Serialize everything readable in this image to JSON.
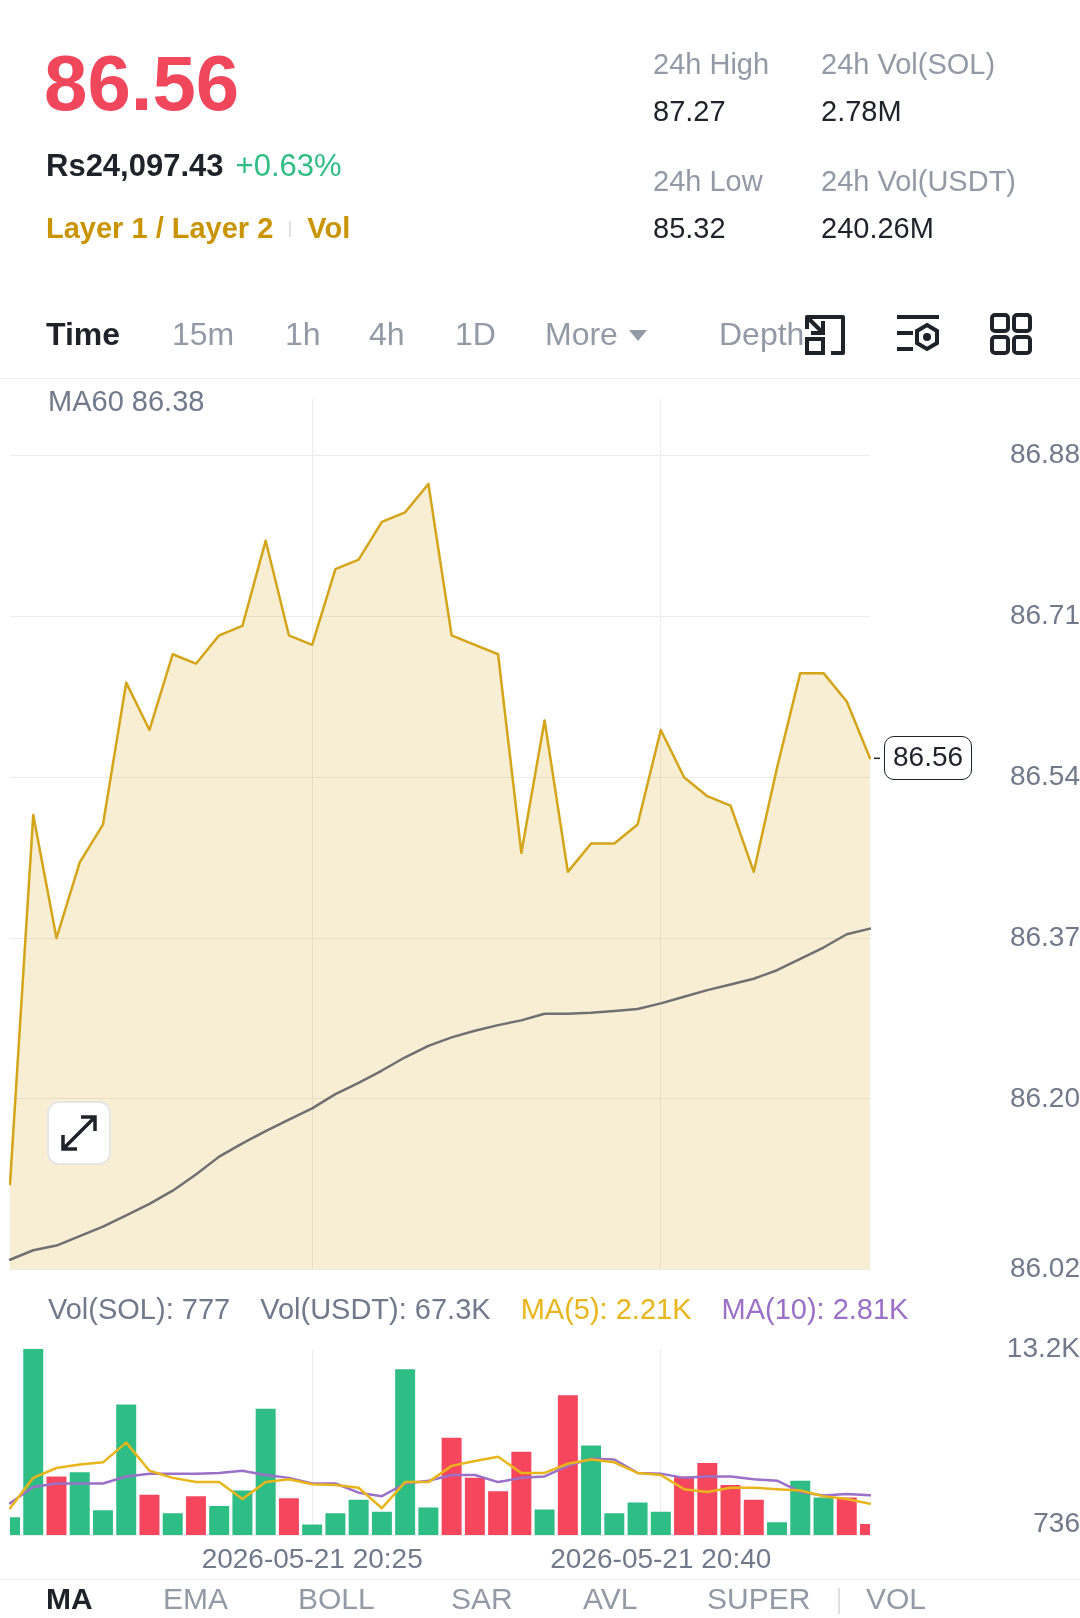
{
  "chart_data": [
    {
      "type": "other",
      "title": "86.56",
      "annotations": [
        "Rs24,097.43",
        "+0.63%",
        "Layer 1 / Layer 2",
        "Vol",
        "24h High",
        "87.27",
        "24h Vol(SOL)",
        "2.78M",
        "24h Low",
        "85.32",
        "24h Vol(USDT)",
        "240.26M",
        "Time",
        "15m",
        "1h",
        "4h",
        "1D",
        "More",
        "Depth"
      ]
    },
    {
      "type": "area",
      "categories": [
        null,
        null,
        null,
        null,
        null,
        null,
        null,
        null,
        null,
        null,
        null,
        null,
        null,
        "2026-05-21 20:25",
        null,
        null,
        null,
        null,
        null,
        null,
        null,
        null,
        null,
        null,
        null,
        null,
        null,
        null,
        "2026-05-21 20:40",
        null,
        null,
        null,
        null,
        null,
        null,
        null,
        null,
        null
      ],
      "series": [
        {
          "color": "#d4a419",
          "values": [
            86.11,
            86.5,
            86.37,
            86.45,
            86.49,
            86.64,
            86.59,
            86.67,
            86.66,
            86.69,
            86.7,
            86.79,
            86.69,
            86.68,
            86.76,
            86.77,
            86.81,
            86.82,
            86.85,
            86.69,
            86.68,
            86.67,
            86.46,
            86.6,
            86.44,
            86.47,
            86.47,
            86.49,
            86.59,
            86.54,
            86.52,
            86.51,
            86.44,
            86.55,
            86.65,
            86.65,
            86.62,
            86.56
          ]
        },
        {
          "type": "line",
          "color": "#707070",
          "values": [
            86.03,
            86.04,
            86.045,
            86.055,
            86.065,
            86.077,
            86.089,
            86.103,
            86.12,
            86.139,
            86.153,
            86.166,
            86.178,
            86.19,
            86.205,
            86.217,
            86.23,
            86.244,
            86.256,
            86.265,
            86.272,
            86.278,
            86.283,
            86.29,
            86.29,
            86.291,
            86.293,
            86.295,
            86.301,
            86.308,
            86.315,
            86.321,
            86.327,
            86.336,
            86.348,
            86.36,
            86.374,
            86.38
          ]
        }
      ],
      "ylim": [
        86.02,
        86.94
      ],
      "yticks": [
        86.02,
        {
          "value": 86.2,
          "label": "86.20"
        },
        86.37,
        86.54,
        86.71,
        86.88
      ],
      "annotations": [
        "MA60 86.38"
      ],
      "grid": true,
      "tick_labels": "y",
      "marker": "none",
      "ref_lines": [
        {
          "axis": "y",
          "value": 86.56,
          "label": "86.56",
          "color": "#1e2329",
          "line_style": "dashed"
        }
      ]
    },
    {
      "type": "bar",
      "categories": [
        null,
        null,
        null,
        null,
        null,
        null,
        null,
        null,
        null,
        null,
        null,
        null,
        null,
        "2026-05-21 20:25",
        null,
        null,
        null,
        null,
        null,
        null,
        null,
        null,
        null,
        null,
        null,
        null,
        null,
        null,
        "2026-05-21 20:40",
        null,
        null,
        null,
        null,
        null,
        null,
        null,
        null,
        null
      ],
      "series": [
        {
          "name": "Vol(SOL): 777",
          "color": "#707a8a",
          "colors": [
            "#2ebd85",
            "#2ebd85",
            "#f6465d",
            "#2ebd85",
            "#2ebd85",
            "#2ebd85",
            "#f6465d",
            "#2ebd85",
            "#f6465d",
            "#2ebd85",
            "#2ebd85",
            "#2ebd85",
            "#f6465d",
            "#2ebd85",
            "#2ebd85",
            "#2ebd85",
            "#2ebd85",
            "#2ebd85",
            "#2ebd85",
            "#f6465d",
            "#f6465d",
            "#f6465d",
            "#f6465d",
            "#2ebd85",
            "#f6465d",
            "#2ebd85",
            "#2ebd85",
            "#2ebd85",
            "#2ebd85",
            "#f6465d",
            "#f6465d",
            "#f6465d",
            "#f6465d",
            "#2ebd85",
            "#2ebd85",
            "#2ebd85",
            "#f6465d",
            "#f6465d"
          ],
          "values": [
            1250,
            13200,
            4150,
            4450,
            1750,
            9250,
            2850,
            1550,
            2750,
            2050,
            3150,
            8950,
            2600,
            750,
            1550,
            2500,
            1650,
            11750,
            1950,
            6900,
            4050,
            3100,
            5900,
            1800,
            9900,
            6350,
            1550,
            2300,
            1650,
            4150,
            5100,
            3550,
            2500,
            900,
            3850,
            2650,
            2650,
            777
          ]
        },
        {
          "name": "MA(5): 2.21K",
          "type": "line",
          "color": "#e8b51b",
          "values": [
            1900,
            4050,
            4750,
            5000,
            5150,
            6550,
            4550,
            4050,
            3750,
            3750,
            2550,
            3750,
            3950,
            3600,
            3550,
            3350,
            1900,
            3750,
            3750,
            4900,
            5250,
            5550,
            4400,
            4400,
            5050,
            5350,
            5150,
            4400,
            4250,
            3250,
            3050,
            3350,
            3350,
            3250,
            3150,
            2750,
            2550,
            2210
          ]
        },
        {
          "name": "MA(10): 2.81K",
          "type": "line",
          "color": "#9a70c8",
          "values": [
            2250,
            3400,
            3650,
            3650,
            3650,
            4150,
            4350,
            4350,
            4350,
            4400,
            4550,
            4250,
            4050,
            3650,
            3650,
            3000,
            2750,
            3650,
            3850,
            4250,
            4250,
            3750,
            4050,
            4150,
            4900,
            5400,
            5350,
            4400,
            4350,
            4050,
            4150,
            4150,
            3950,
            3850,
            3050,
            2800,
            2900,
            2810
          ]
        }
      ],
      "annotations": [
        "Vol(USDT): 67.3K"
      ],
      "ylim": [
        0,
        13200
      ],
      "yticks": [
        {
          "value": 13200,
          "label": "13.2K"
        },
        736
      ],
      "grid": "x",
      "legend": "top left",
      "marker": "none"
    },
    {
      "type": "other",
      "annotations": [
        "MA",
        "EMA",
        "BOLL",
        "SAR",
        "AVL",
        "SUPER",
        "VOL"
      ]
    }
  ]
}
